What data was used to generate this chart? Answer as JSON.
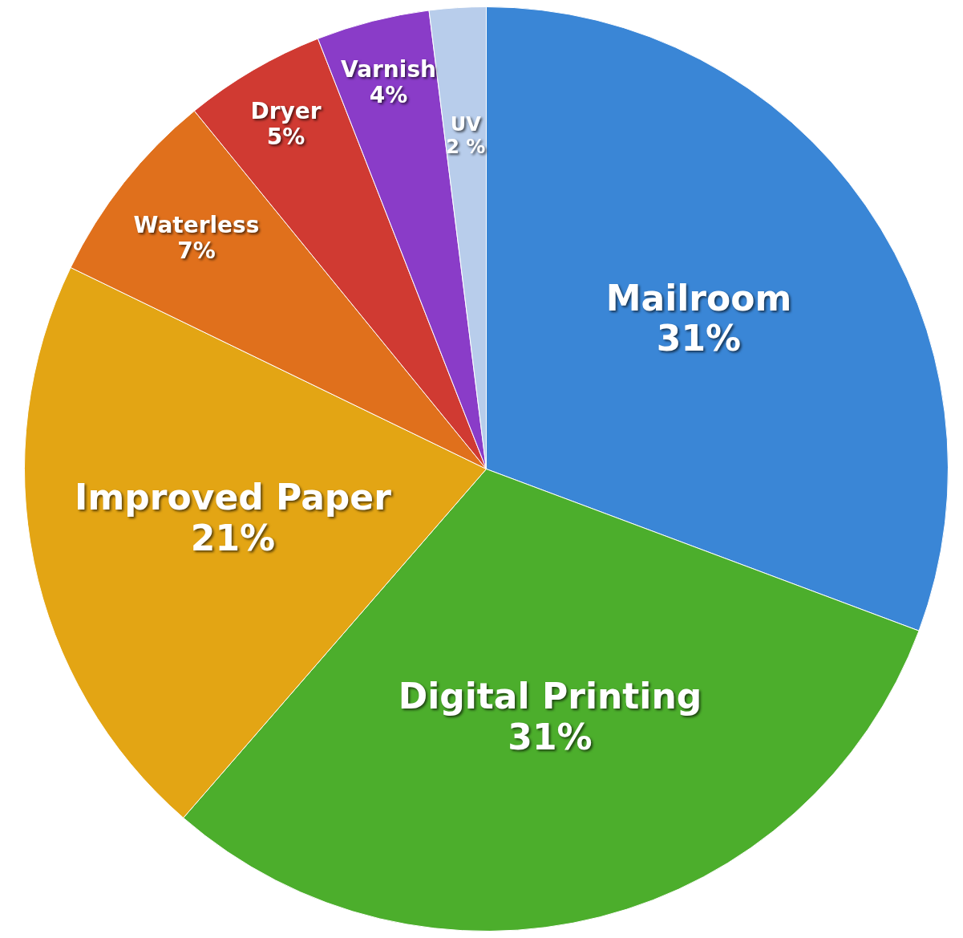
{
  "chart_data": {
    "type": "pie",
    "categories": [
      "Mailroom",
      "Digital Printing",
      "Improved Paper",
      "Waterless",
      "Dryer",
      "Varnish",
      "UV"
    ],
    "values": [
      31,
      31,
      21,
      7,
      5,
      4,
      2
    ],
    "value_labels": [
      "31%",
      "31%",
      "21%",
      "7%",
      "5%",
      "4%",
      "2 %"
    ],
    "colors": [
      "#3a86d6",
      "#4cae2c",
      "#e3a514",
      "#e0701c",
      "#d03a32",
      "#8a3cc8",
      "#b8cdeb"
    ],
    "legend": false
  }
}
